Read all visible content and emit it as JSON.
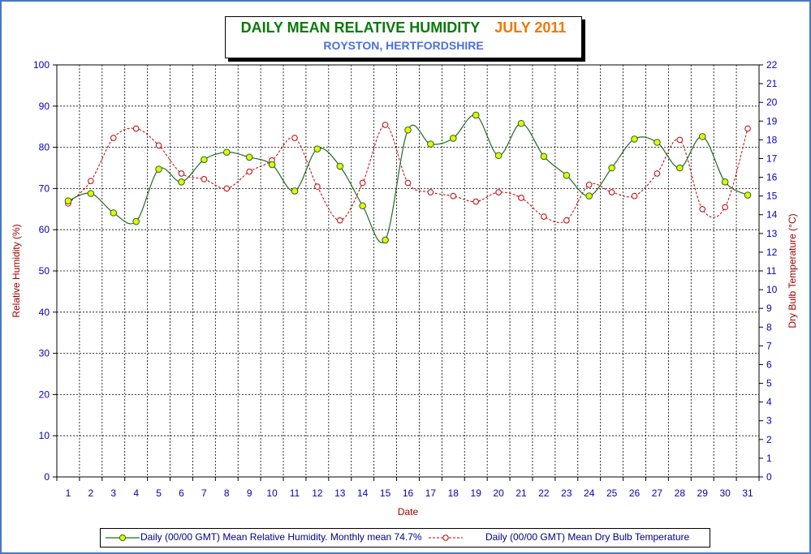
{
  "title": {
    "main": "DAILY MEAN RELATIVE HUMIDITY",
    "date": "JULY 2011",
    "subtitle": "ROYSTON, HERTFORDSHIRE"
  },
  "colors": {
    "frame": "#4a78c0",
    "humidity_line": "#1f6b1f",
    "humidity_marker": "#e8f400",
    "temperature": "#c00000",
    "axis_text": "#0000c0",
    "axis_title": "#a00000"
  },
  "chart_data": {
    "type": "line",
    "xlabel": "Date",
    "ylabel": "Relative Humidity (%)",
    "y2label": "Dry Bulb Temperature (°C)",
    "ylim": [
      0,
      100
    ],
    "y2lim": [
      0,
      22
    ],
    "grid": true,
    "legend_position": "bottom",
    "x": [
      1,
      2,
      3,
      4,
      5,
      6,
      7,
      8,
      9,
      10,
      11,
      12,
      13,
      14,
      15,
      16,
      17,
      18,
      19,
      20,
      21,
      22,
      23,
      24,
      25,
      26,
      27,
      28,
      29,
      30,
      31
    ],
    "series": [
      {
        "name": "Daily (00/00 GMT) Mean Relative Humidity. Monthly mean 74.7%",
        "axis": "left",
        "values": [
          67,
          68.8,
          64.1,
          62,
          74.7,
          71.6,
          77,
          78.8,
          77.6,
          75.8,
          69.4,
          79.6,
          75.4,
          65.8,
          57.5,
          84.2,
          80.8,
          82.2,
          87.8,
          78,
          85.8,
          77.8,
          73.2,
          68.2,
          75,
          82,
          81.2,
          75,
          82.6,
          71.6,
          68.4
        ]
      },
      {
        "name": "Daily (00/00 GMT) Mean Dry Bulb Temperature",
        "axis": "right",
        "values": [
          14.6,
          15.8,
          18.1,
          18.6,
          17.7,
          16.2,
          15.9,
          15.4,
          16.3,
          16.9,
          18.1,
          15.5,
          13.7,
          15.7,
          18.8,
          15.7,
          15.2,
          15,
          14.7,
          15.2,
          14.9,
          13.9,
          13.7,
          15.6,
          15.2,
          15,
          16.2,
          18,
          14.3,
          14.4,
          18.6
        ]
      }
    ]
  }
}
